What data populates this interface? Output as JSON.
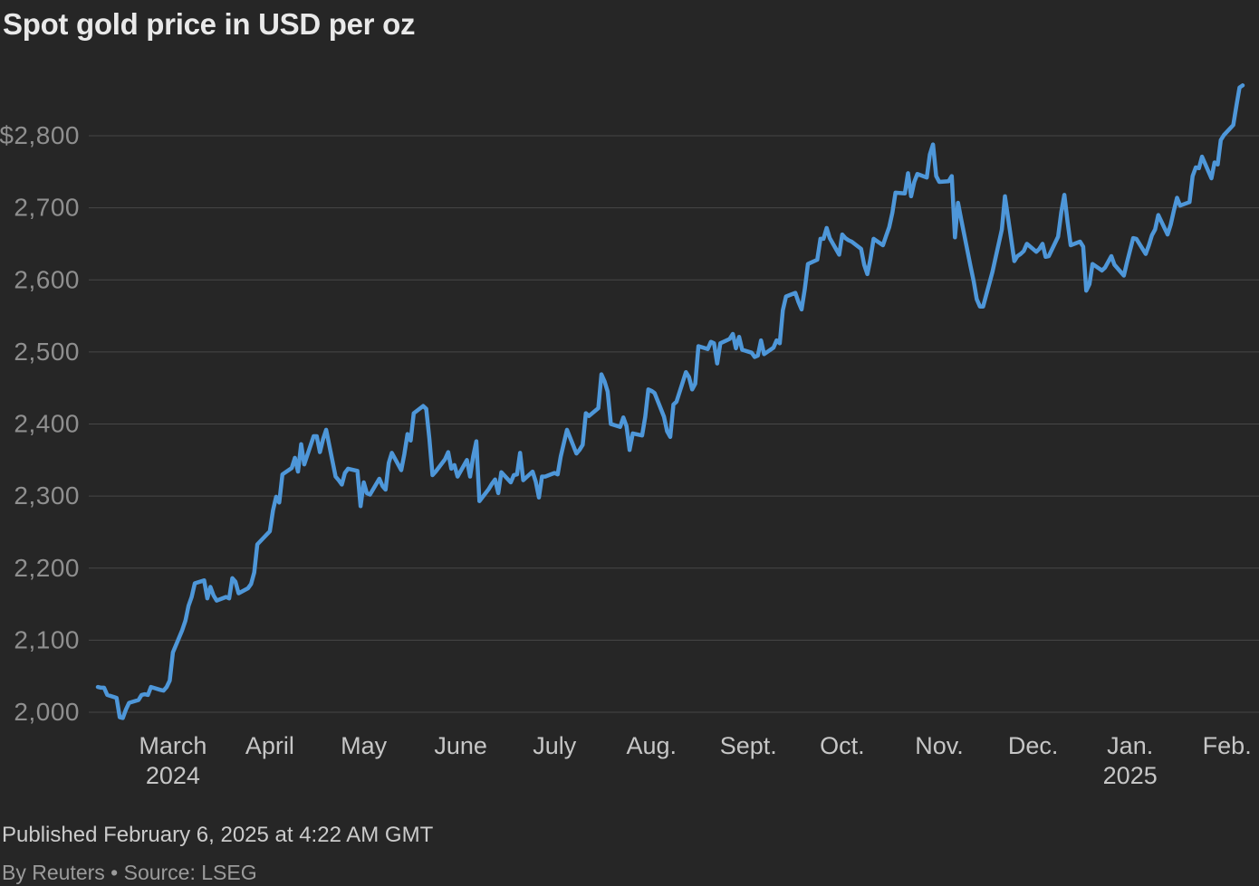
{
  "page": {
    "title": "Spot gold price in USD per oz",
    "published": "Published February 6, 2025 at 4:22 AM GMT",
    "byline": "By Reuters • Source: LSEG"
  },
  "colors": {
    "background": "#262626",
    "line": "#4e97d9",
    "grid": "#474747",
    "title": "#e9e9e9",
    "y_label": "#8f8f8f",
    "x_label": "#c6c6c6",
    "published_text": "#cbcbcb",
    "byline_text": "#9b9b9b"
  },
  "chart_data": {
    "type": "line",
    "title": "Spot gold price in USD per oz",
    "series_name": "Spot gold price (USD per oz)",
    "x_start_date": "2024-02-06",
    "x_end_date": "2025-02-06",
    "x_unit": "days since 2024-02-06",
    "x_range_days": 366,
    "ylim": [
      2000,
      2800
    ],
    "grid": "horizontal-only",
    "legend": "none",
    "y_ticks": [
      {
        "label": "$2,800",
        "value": 2800
      },
      {
        "label": "2,700",
        "value": 2700
      },
      {
        "label": "2,600",
        "value": 2600
      },
      {
        "label": "2,500",
        "value": 2500
      },
      {
        "label": "2,400",
        "value": 2400
      },
      {
        "label": "2,300",
        "value": 2300
      },
      {
        "label": "2,200",
        "value": 2200
      },
      {
        "label": "2,100",
        "value": 2100
      },
      {
        "label": "2,000",
        "value": 2000
      }
    ],
    "x_ticks": [
      {
        "label": "March",
        "sublabel": "2024",
        "day": 24
      },
      {
        "label": "April",
        "day": 55
      },
      {
        "label": "May",
        "day": 85
      },
      {
        "label": "June",
        "day": 116
      },
      {
        "label": "July",
        "day": 146
      },
      {
        "label": "Aug.",
        "day": 177
      },
      {
        "label": "Sept.",
        "day": 208
      },
      {
        "label": "Oct.",
        "day": 238
      },
      {
        "label": "Nov.",
        "day": 269
      },
      {
        "label": "Dec.",
        "day": 299
      },
      {
        "label": "Jan.",
        "sublabel": "2025",
        "day": 330
      },
      {
        "label": "Feb.",
        "day": 361
      }
    ],
    "points": [
      [
        0,
        2035
      ],
      [
        1,
        2034
      ],
      [
        2,
        2034
      ],
      [
        3,
        2024
      ],
      [
        6,
        2020
      ],
      [
        7,
        1993
      ],
      [
        8,
        1992
      ],
      [
        9,
        2004
      ],
      [
        10,
        2013
      ],
      [
        13,
        2017
      ],
      [
        14,
        2024
      ],
      [
        15,
        2025
      ],
      [
        16,
        2024
      ],
      [
        17,
        2035
      ],
      [
        20,
        2031
      ],
      [
        21,
        2030
      ],
      [
        22,
        2035
      ],
      [
        23,
        2044
      ],
      [
        24,
        2083
      ],
      [
        27,
        2114
      ],
      [
        28,
        2127
      ],
      [
        29,
        2148
      ],
      [
        30,
        2160
      ],
      [
        31,
        2179
      ],
      [
        34,
        2183
      ],
      [
        35,
        2158
      ],
      [
        36,
        2174
      ],
      [
        37,
        2162
      ],
      [
        38,
        2155
      ],
      [
        41,
        2160
      ],
      [
        42,
        2158
      ],
      [
        43,
        2186
      ],
      [
        44,
        2181
      ],
      [
        45,
        2165
      ],
      [
        48,
        2172
      ],
      [
        49,
        2178
      ],
      [
        50,
        2194
      ],
      [
        51,
        2233
      ],
      [
        55,
        2251
      ],
      [
        56,
        2280
      ],
      [
        57,
        2299
      ],
      [
        58,
        2291
      ],
      [
        59,
        2330
      ],
      [
        62,
        2339
      ],
      [
        63,
        2353
      ],
      [
        64,
        2334
      ],
      [
        65,
        2372
      ],
      [
        66,
        2344
      ],
      [
        69,
        2383
      ],
      [
        70,
        2383
      ],
      [
        71,
        2361
      ],
      [
        72,
        2379
      ],
      [
        73,
        2392
      ],
      [
        76,
        2327
      ],
      [
        77,
        2322
      ],
      [
        78,
        2316
      ],
      [
        79,
        2332
      ],
      [
        80,
        2338
      ],
      [
        83,
        2335
      ],
      [
        84,
        2286
      ],
      [
        85,
        2319
      ],
      [
        86,
        2304
      ],
      [
        87,
        2302
      ],
      [
        90,
        2324
      ],
      [
        91,
        2314
      ],
      [
        92,
        2309
      ],
      [
        93,
        2346
      ],
      [
        94,
        2360
      ],
      [
        97,
        2336
      ],
      [
        98,
        2358
      ],
      [
        99,
        2386
      ],
      [
        100,
        2377
      ],
      [
        101,
        2415
      ],
      [
        104,
        2425
      ],
      [
        105,
        2421
      ],
      [
        106,
        2379
      ],
      [
        107,
        2329
      ],
      [
        108,
        2334
      ],
      [
        111,
        2351
      ],
      [
        112,
        2361
      ],
      [
        113,
        2338
      ],
      [
        114,
        2343
      ],
      [
        115,
        2327
      ],
      [
        118,
        2350
      ],
      [
        119,
        2327
      ],
      [
        120,
        2355
      ],
      [
        121,
        2376
      ],
      [
        122,
        2293
      ],
      [
        125,
        2310
      ],
      [
        126,
        2317
      ],
      [
        127,
        2323
      ],
      [
        128,
        2304
      ],
      [
        129,
        2333
      ],
      [
        132,
        2319
      ],
      [
        133,
        2329
      ],
      [
        134,
        2330
      ],
      [
        135,
        2360
      ],
      [
        136,
        2322
      ],
      [
        139,
        2334
      ],
      [
        140,
        2320
      ],
      [
        141,
        2298
      ],
      [
        142,
        2327
      ],
      [
        143,
        2327
      ],
      [
        146,
        2332
      ],
      [
        147,
        2330
      ],
      [
        148,
        2355
      ],
      [
        150,
        2392
      ],
      [
        153,
        2359
      ],
      [
        154,
        2364
      ],
      [
        155,
        2371
      ],
      [
        156,
        2415
      ],
      [
        157,
        2411
      ],
      [
        160,
        2422
      ],
      [
        161,
        2469
      ],
      [
        162,
        2459
      ],
      [
        163,
        2445
      ],
      [
        164,
        2400
      ],
      [
        167,
        2396
      ],
      [
        168,
        2409
      ],
      [
        169,
        2397
      ],
      [
        170,
        2364
      ],
      [
        171,
        2387
      ],
      [
        174,
        2384
      ],
      [
        175,
        2410
      ],
      [
        176,
        2448
      ],
      [
        177,
        2446
      ],
      [
        178,
        2443
      ],
      [
        181,
        2410
      ],
      [
        182,
        2390
      ],
      [
        183,
        2382
      ],
      [
        184,
        2427
      ],
      [
        185,
        2431
      ],
      [
        188,
        2472
      ],
      [
        189,
        2465
      ],
      [
        190,
        2448
      ],
      [
        191,
        2456
      ],
      [
        192,
        2508
      ],
      [
        195,
        2504
      ],
      [
        196,
        2514
      ],
      [
        197,
        2512
      ],
      [
        198,
        2484
      ],
      [
        199,
        2512
      ],
      [
        202,
        2518
      ],
      [
        203,
        2525
      ],
      [
        204,
        2505
      ],
      [
        205,
        2521
      ],
      [
        206,
        2503
      ],
      [
        209,
        2499
      ],
      [
        210,
        2493
      ],
      [
        211,
        2495
      ],
      [
        212,
        2516
      ],
      [
        213,
        2497
      ],
      [
        216,
        2506
      ],
      [
        217,
        2516
      ],
      [
        218,
        2512
      ],
      [
        219,
        2558
      ],
      [
        220,
        2577
      ],
      [
        223,
        2582
      ],
      [
        224,
        2569
      ],
      [
        225,
        2559
      ],
      [
        226,
        2587
      ],
      [
        227,
        2622
      ],
      [
        230,
        2628
      ],
      [
        231,
        2657
      ],
      [
        232,
        2657
      ],
      [
        233,
        2672
      ],
      [
        234,
        2658
      ],
      [
        237,
        2635
      ],
      [
        238,
        2663
      ],
      [
        239,
        2658
      ],
      [
        240,
        2655
      ],
      [
        241,
        2653
      ],
      [
        244,
        2643
      ],
      [
        245,
        2621
      ],
      [
        246,
        2608
      ],
      [
        247,
        2629
      ],
      [
        248,
        2657
      ],
      [
        251,
        2648
      ],
      [
        252,
        2661
      ],
      [
        253,
        2673
      ],
      [
        254,
        2693
      ],
      [
        255,
        2721
      ],
      [
        258,
        2720
      ],
      [
        259,
        2748
      ],
      [
        260,
        2716
      ],
      [
        261,
        2736
      ],
      [
        262,
        2747
      ],
      [
        265,
        2742
      ],
      [
        266,
        2774
      ],
      [
        267,
        2788
      ],
      [
        268,
        2744
      ],
      [
        269,
        2736
      ],
      [
        272,
        2737
      ],
      [
        273,
        2744
      ],
      [
        274,
        2659
      ],
      [
        275,
        2707
      ],
      [
        276,
        2684
      ],
      [
        279,
        2619
      ],
      [
        280,
        2598
      ],
      [
        281,
        2573
      ],
      [
        282,
        2563
      ],
      [
        283,
        2563
      ],
      [
        286,
        2611
      ],
      [
        287,
        2631
      ],
      [
        288,
        2650
      ],
      [
        289,
        2670
      ],
      [
        290,
        2716
      ],
      [
        293,
        2626
      ],
      [
        294,
        2633
      ],
      [
        295,
        2636
      ],
      [
        296,
        2640
      ],
      [
        297,
        2650
      ],
      [
        300,
        2639
      ],
      [
        301,
        2643
      ],
      [
        302,
        2650
      ],
      [
        303,
        2632
      ],
      [
        304,
        2633
      ],
      [
        307,
        2660
      ],
      [
        308,
        2694
      ],
      [
        309,
        2718
      ],
      [
        310,
        2681
      ],
      [
        311,
        2648
      ],
      [
        314,
        2653
      ],
      [
        315,
        2646
      ],
      [
        316,
        2585
      ],
      [
        317,
        2594
      ],
      [
        318,
        2622
      ],
      [
        321,
        2613
      ],
      [
        322,
        2617
      ],
      [
        324,
        2633
      ],
      [
        325,
        2621
      ],
      [
        328,
        2606
      ],
      [
        329,
        2624
      ],
      [
        331,
        2658
      ],
      [
        332,
        2657
      ],
      [
        335,
        2636
      ],
      [
        336,
        2648
      ],
      [
        337,
        2662
      ],
      [
        338,
        2670
      ],
      [
        339,
        2690
      ],
      [
        342,
        2663
      ],
      [
        343,
        2677
      ],
      [
        344,
        2696
      ],
      [
        345,
        2714
      ],
      [
        346,
        2703
      ],
      [
        349,
        2708
      ],
      [
        350,
        2744
      ],
      [
        351,
        2756
      ],
      [
        352,
        2755
      ],
      [
        353,
        2771
      ],
      [
        356,
        2741
      ],
      [
        357,
        2763
      ],
      [
        358,
        2760
      ],
      [
        359,
        2794
      ],
      [
        360,
        2801
      ],
      [
        363,
        2815
      ],
      [
        364,
        2842
      ],
      [
        365,
        2867
      ],
      [
        366,
        2870
      ]
    ]
  }
}
